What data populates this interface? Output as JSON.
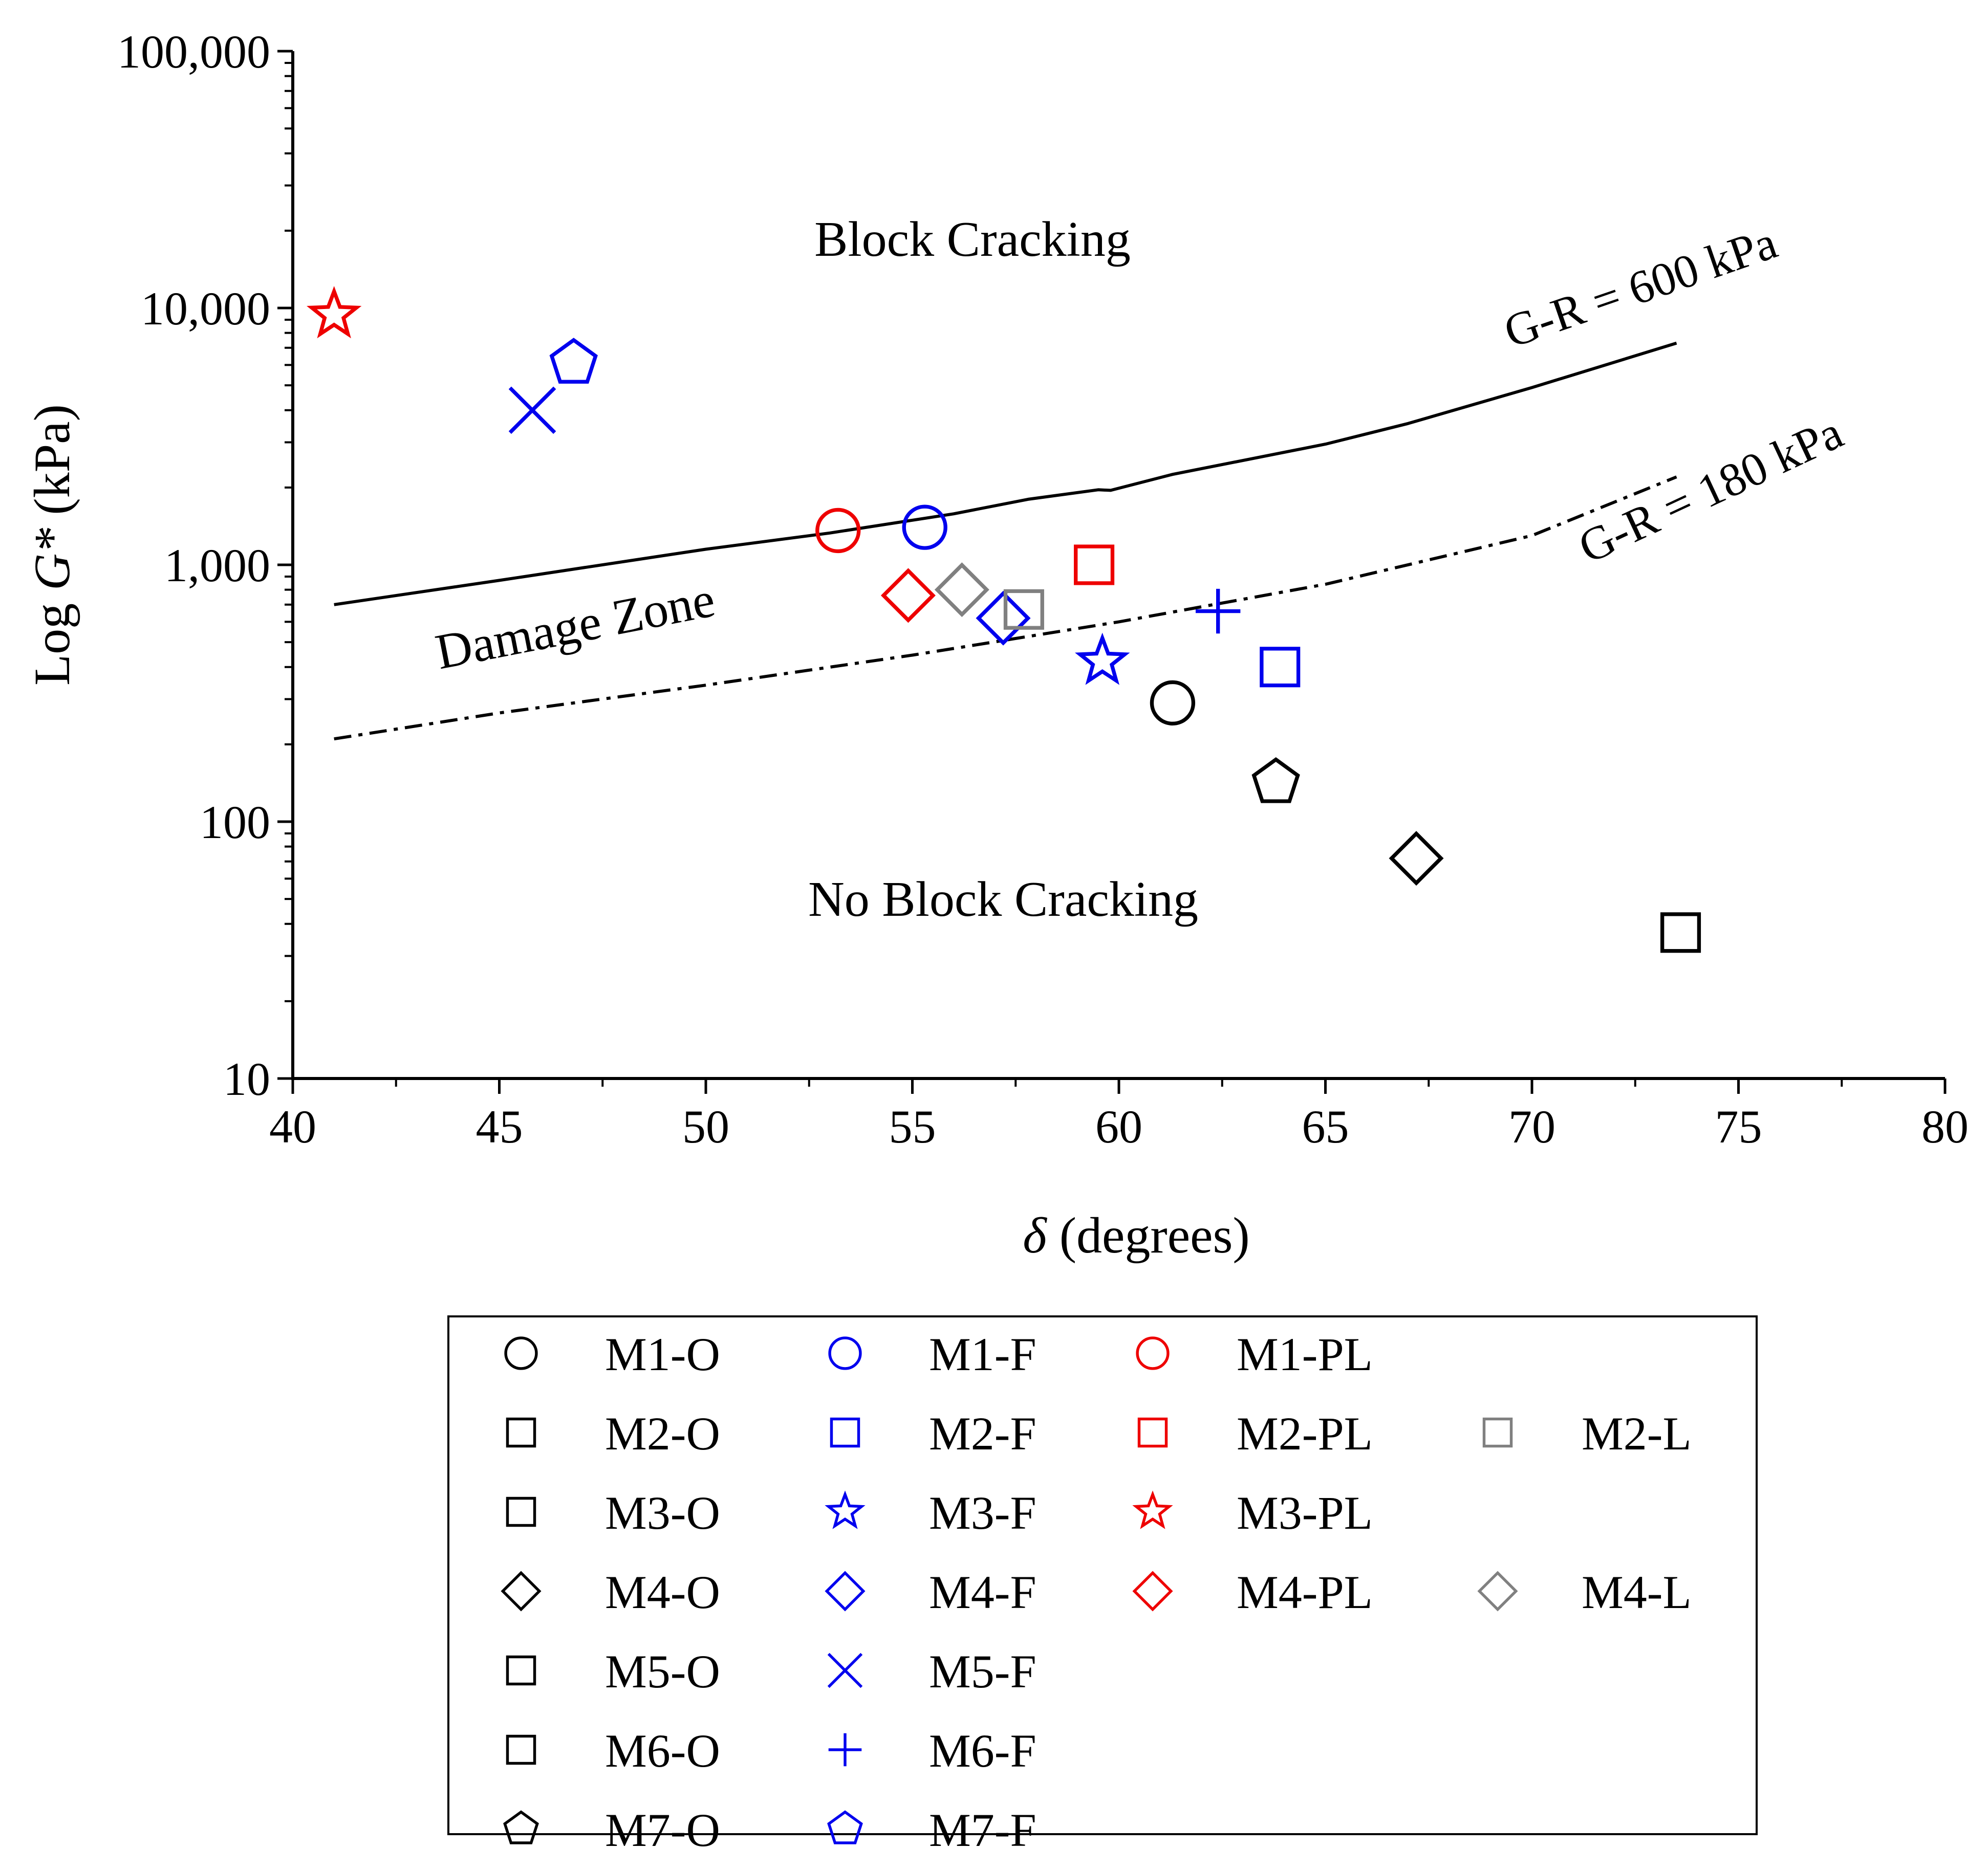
{
  "chart_data": {
    "type": "scatter",
    "x_scale": "linear",
    "y_scale": "log",
    "xlabel_symbol": "δ",
    "xlabel_rest": " (degrees)",
    "ylabel_prefix": "Log ",
    "ylabel_symbol": "G*",
    "ylabel_suffix": " (kPa)",
    "xlim": [
      40,
      80
    ],
    "ylim": [
      10,
      100000
    ],
    "x_ticks": [
      40,
      45,
      50,
      55,
      60,
      65,
      70,
      75,
      80
    ],
    "x_tick_labels": [
      "40",
      "45",
      "50",
      "55",
      "60",
      "65",
      "70",
      "75",
      "80"
    ],
    "y_ticks": [
      10,
      100,
      1000,
      10000,
      100000
    ],
    "y_tick_labels": [
      "10",
      "100",
      "1,000",
      "10,000",
      "100,000"
    ],
    "grid": false,
    "region_labels": {
      "block_cracking": "Block Cracking",
      "damage_zone": "Damage Zone",
      "no_block_cracking": "No Block Cracking"
    },
    "curves": [
      {
        "name": "G-R = 600 kPa",
        "style": "solid",
        "color": "#000000",
        "points": [
          [
            41,
            700
          ],
          [
            45,
            870
          ],
          [
            50,
            1150
          ],
          [
            53,
            1330
          ],
          [
            56,
            1580
          ],
          [
            57.8,
            1800
          ],
          [
            59.5,
            1960
          ],
          [
            59.8,
            1950
          ],
          [
            61.3,
            2250
          ],
          [
            65,
            2950
          ],
          [
            67,
            3550
          ],
          [
            70,
            4900
          ],
          [
            73.5,
            7300
          ]
        ]
      },
      {
        "name": "G-R = 180 kPa",
        "style": "dashdot",
        "color": "#000000",
        "points": [
          [
            41,
            210
          ],
          [
            45,
            265
          ],
          [
            50,
            340
          ],
          [
            55,
            445
          ],
          [
            60,
            600
          ],
          [
            65,
            840
          ],
          [
            70,
            1300
          ],
          [
            73.5,
            2200
          ]
        ]
      }
    ],
    "series": [
      {
        "name": "M1-O",
        "marker": "circle",
        "color": "#000000",
        "x": 61.3,
        "y": 290
      },
      {
        "name": "M2-O",
        "marker": "square",
        "color": "#000000",
        "x": 73.6,
        "y": 37
      },
      {
        "name": "M3-O",
        "marker": "square",
        "color": "#000000",
        "x": null,
        "y": null
      },
      {
        "name": "M4-O",
        "marker": "diamond",
        "color": "#000000",
        "x": 67.2,
        "y": 72
      },
      {
        "name": "M5-O",
        "marker": "square",
        "color": "#000000",
        "x": null,
        "y": null
      },
      {
        "name": "M6-O",
        "marker": "square",
        "color": "#000000",
        "x": null,
        "y": null
      },
      {
        "name": "M7-O",
        "marker": "pentagon",
        "color": "#000000",
        "x": 63.8,
        "y": 142
      },
      {
        "name": "M1-F",
        "marker": "circle",
        "color": "#0000ee",
        "x": 55.3,
        "y": 1400
      },
      {
        "name": "M2-F",
        "marker": "square",
        "color": "#0000ee",
        "x": 63.9,
        "y": 400
      },
      {
        "name": "M3-F",
        "marker": "star",
        "color": "#0000ee",
        "x": 59.6,
        "y": 420
      },
      {
        "name": "M4-F",
        "marker": "diamond",
        "color": "#0000ee",
        "x": 57.2,
        "y": 620
      },
      {
        "name": "M5-F",
        "marker": "x",
        "color": "#0000ee",
        "x": 45.8,
        "y": 4000
      },
      {
        "name": "M6-F",
        "marker": "plus",
        "color": "#0000ee",
        "x": 62.4,
        "y": 660
      },
      {
        "name": "M7-F",
        "marker": "pentagon",
        "color": "#0000ee",
        "x": 46.8,
        "y": 6100
      },
      {
        "name": "M1-PL",
        "marker": "circle",
        "color": "#ee0000",
        "x": 53.2,
        "y": 1360
      },
      {
        "name": "M2-PL",
        "marker": "square",
        "color": "#ee0000",
        "x": 59.4,
        "y": 1000
      },
      {
        "name": "M3-PL",
        "marker": "star",
        "color": "#ee0000",
        "x": 41.0,
        "y": 9400
      },
      {
        "name": "M4-PL",
        "marker": "diamond",
        "color": "#ee0000",
        "x": 54.9,
        "y": 760
      },
      {
        "name": "M2-L",
        "marker": "square",
        "color": "#808080",
        "x": 57.7,
        "y": 670
      },
      {
        "name": "M4-L",
        "marker": "diamond",
        "color": "#808080",
        "x": 56.2,
        "y": 800
      }
    ],
    "legend_placement": "bottom",
    "legend_columns": [
      [
        "M1-O",
        "M2-O",
        "M3-O",
        "M4-O",
        "M5-O",
        "M6-O",
        "M7-O"
      ],
      [
        "M1-F",
        "M2-F",
        "M3-F",
        "M4-F",
        "M5-F",
        "M6-F",
        "M7-F"
      ],
      [
        "M1-PL",
        "M2-PL",
        "M3-PL",
        "M4-PL",
        null,
        null,
        null
      ],
      [
        null,
        "M2-L",
        null,
        "M4-L",
        null,
        null,
        null
      ]
    ]
  }
}
